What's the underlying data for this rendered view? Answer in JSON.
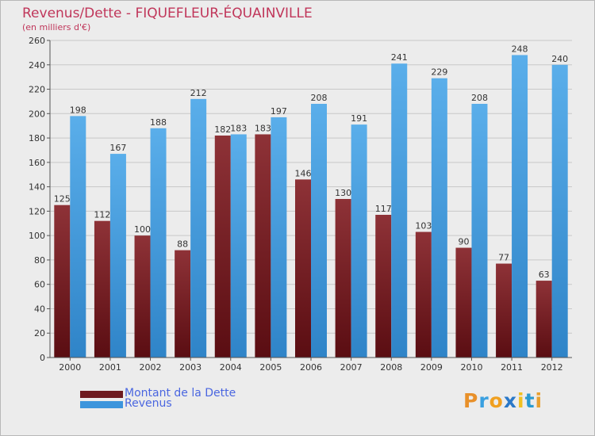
{
  "title": "Revenus/Dette - FIQUEFLEUR-ÉQUAINVILLE",
  "subtitle": "(en milliers d'€)",
  "logo": {
    "letters": [
      "P",
      "r",
      "o",
      "x",
      "i",
      "t",
      "i"
    ],
    "colors": [
      "#e8902a",
      "#3aa0e0",
      "#f0a020",
      "#2a78c8",
      "#f0c020",
      "#2a9ad0",
      "#e8a030"
    ]
  },
  "colors": {
    "dette": "#6e1a1f",
    "revenus": "#3d95dc",
    "grid": "#c8c8c8",
    "axis_text": "#333333"
  },
  "chart_data": {
    "type": "bar",
    "title": "Revenus/Dette - FIQUEFLEUR-ÉQUAINVILLE",
    "ylabel": "(en milliers d'€)",
    "ylim": [
      0,
      260
    ],
    "yticks": [
      0,
      20,
      40,
      60,
      80,
      100,
      120,
      140,
      160,
      180,
      200,
      220,
      240,
      260
    ],
    "grid": true,
    "legend_position": "bottom-left",
    "categories": [
      "2000",
      "2001",
      "2002",
      "2003",
      "2004",
      "2005",
      "2006",
      "2007",
      "2008",
      "2009",
      "2010",
      "2011",
      "2012"
    ],
    "series": [
      {
        "name": "Montant de la Dette",
        "values": [
          125,
          112,
          100,
          88,
          182,
          183,
          146,
          130,
          117,
          103,
          90,
          77,
          63
        ]
      },
      {
        "name": "Revenus",
        "values": [
          198,
          167,
          188,
          212,
          183,
          197,
          208,
          191,
          241,
          229,
          208,
          248,
          240
        ]
      }
    ]
  }
}
